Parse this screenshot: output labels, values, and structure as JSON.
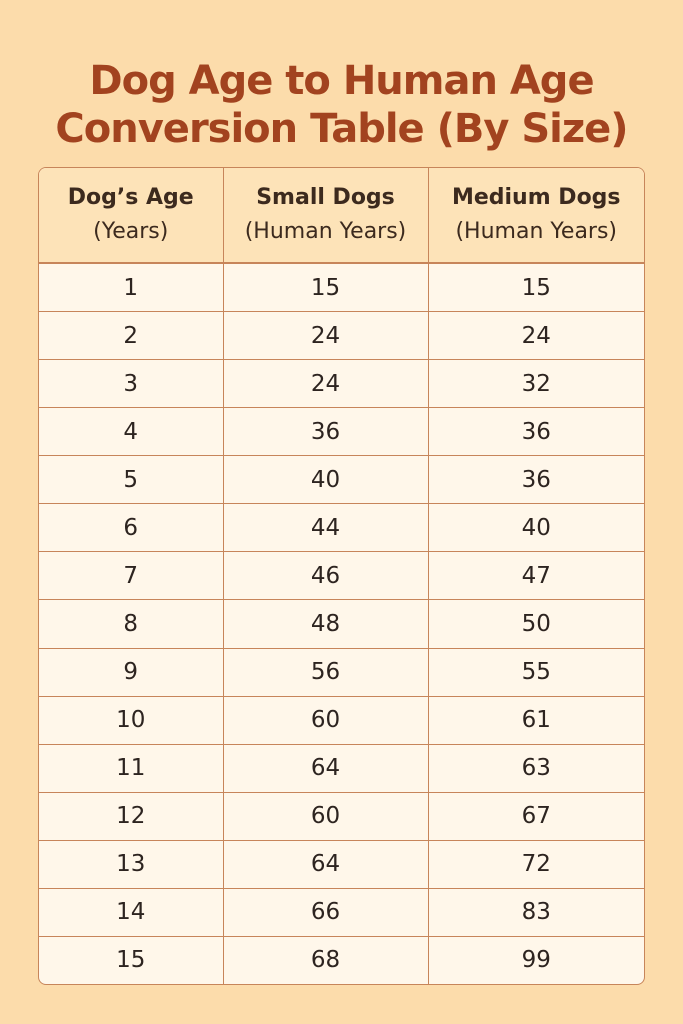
{
  "title": {
    "line1": "Dog Age to Human Age",
    "line2": "Conversion Table (By Size)"
  },
  "table": {
    "headers": [
      {
        "line1": "Dog’s Age",
        "line2": "(Years)"
      },
      {
        "line1": "Small Dogs",
        "line2": "(Human Years)"
      },
      {
        "line1": "Medium Dogs",
        "line2": "(Human Years)"
      }
    ],
    "rows": [
      [
        "1",
        "15",
        "15"
      ],
      [
        "2",
        "24",
        "24"
      ],
      [
        "3",
        "24",
        "32"
      ],
      [
        "4",
        "36",
        "36"
      ],
      [
        "5",
        "40",
        "36"
      ],
      [
        "6",
        "44",
        "40"
      ],
      [
        "7",
        "46",
        "47"
      ],
      [
        "8",
        "48",
        "50"
      ],
      [
        "9",
        "56",
        "55"
      ],
      [
        "10",
        "60",
        "61"
      ],
      [
        "11",
        "64",
        "63"
      ],
      [
        "12",
        "60",
        "67"
      ],
      [
        "13",
        "64",
        "72"
      ],
      [
        "14",
        "66",
        "83"
      ],
      [
        "15",
        "68",
        "99"
      ]
    ]
  },
  "colors": {
    "background": "#fcdcab",
    "title": "#a2431f",
    "header_bg": "#fde3b8",
    "cell_bg": "#fff7ea",
    "border": "#c7855a"
  }
}
